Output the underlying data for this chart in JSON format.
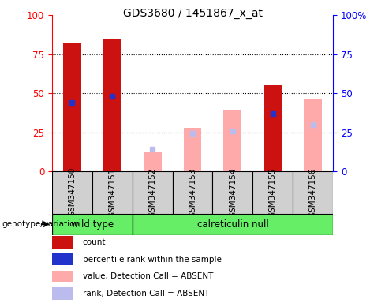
{
  "title": "GDS3680 / 1451867_x_at",
  "samples": [
    "GSM347150",
    "GSM347151",
    "GSM347152",
    "GSM347153",
    "GSM347154",
    "GSM347155",
    "GSM347156"
  ],
  "count_values": [
    82,
    85,
    0,
    0,
    0,
    55,
    0
  ],
  "rank_values": [
    44,
    48,
    0,
    0,
    0,
    37,
    0
  ],
  "absent_value_values": [
    0,
    0,
    12,
    28,
    39,
    0,
    46
  ],
  "absent_rank_values": [
    0,
    0,
    14,
    24,
    26,
    0,
    30
  ],
  "ylim": [
    0,
    100
  ],
  "yticks": [
    0,
    25,
    50,
    75,
    100
  ],
  "count_color": "#cc1111",
  "rank_color": "#2233cc",
  "absent_value_color": "#ffaaaa",
  "absent_rank_color": "#bbbbee",
  "group1_label": "wild type",
  "group2_label": "calreticulin null",
  "group_label": "genotype/variation",
  "legend_items": [
    {
      "label": "count",
      "color": "#cc1111"
    },
    {
      "label": "percentile rank within the sample",
      "color": "#2233cc"
    },
    {
      "label": "value, Detection Call = ABSENT",
      "color": "#ffaaaa"
    },
    {
      "label": "rank, Detection Call = ABSENT",
      "color": "#bbbbee"
    }
  ],
  "group_color": "#66ee66",
  "sample_box_color": "#d0d0d0"
}
